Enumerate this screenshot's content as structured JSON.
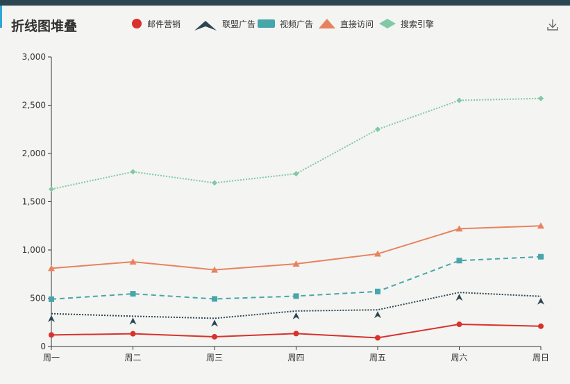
{
  "title": "折线图堆叠",
  "icons": {
    "download": "download-icon"
  },
  "chart_data": {
    "type": "line",
    "title": "折线图堆叠",
    "stacked": true,
    "categories": [
      "周一",
      "周二",
      "周三",
      "周四",
      "周五",
      "周六",
      "周日"
    ],
    "ylim": [
      0,
      3000
    ],
    "yticks": [
      0,
      500,
      1000,
      1500,
      2000,
      2500,
      3000
    ],
    "ytick_labels": [
      "0",
      "500",
      "1,000",
      "1,500",
      "2,000",
      "2,500",
      "3,000"
    ],
    "grid": false,
    "legend_position": "top",
    "series": [
      {
        "name": "邮件营销",
        "color": "#d9312b",
        "marker": "circle",
        "line": "solid",
        "values": [
          120,
          132,
          101,
          134,
          90,
          230,
          210
        ]
      },
      {
        "name": "联盟广告",
        "color": "#2b4553",
        "marker": "arrow",
        "line": "dotted",
        "values": [
          220,
          182,
          191,
          234,
          290,
          330,
          310
        ]
      },
      {
        "name": "视频广告",
        "color": "#46a6aa",
        "marker": "rect",
        "line": "dashed",
        "values": [
          150,
          232,
          201,
          154,
          190,
          330,
          410
        ]
      },
      {
        "name": "直接访问",
        "color": "#e8825e",
        "marker": "triangle",
        "line": "solid",
        "values": [
          320,
          332,
          301,
          334,
          390,
          330,
          320
        ]
      },
      {
        "name": "搜索引擎",
        "color": "#7fc9a5",
        "marker": "diamond",
        "line": "dotted",
        "values": [
          820,
          932,
          901,
          934,
          1290,
          1330,
          1320
        ]
      }
    ]
  }
}
